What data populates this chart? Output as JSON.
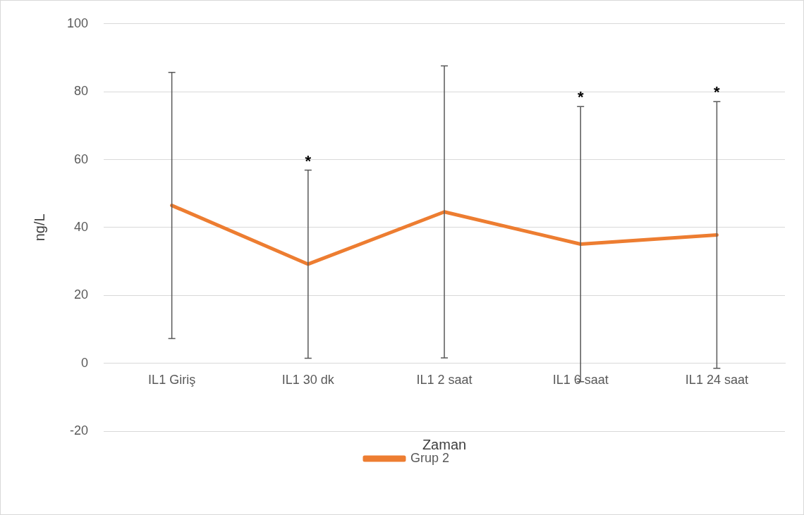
{
  "chart_data": {
    "type": "line",
    "xlabel": "Zaman",
    "ylabel": "ng/L",
    "categories": [
      "IL1 Giriş",
      "IL1 30 dk",
      "IL1 2 saat",
      "IL1 6 saat",
      "IL1 24 saat"
    ],
    "series": [
      {
        "name": "Grup 2",
        "color": "#ed7d31",
        "values": [
          46.5,
          29.2,
          44.6,
          35.1,
          37.8
        ],
        "errors": [
          39.2,
          27.7,
          43,
          40.5,
          39.3
        ]
      }
    ],
    "ylim": [
      -20,
      100
    ],
    "yticks": [
      -20,
      0,
      20,
      40,
      60,
      80,
      100
    ],
    "grid": "y",
    "legend": "bottom",
    "marker": "none",
    "annotations": [
      {
        "text": "*",
        "x": "IL1 30 dk",
        "y": 56.9
      },
      {
        "text": "*",
        "x": "IL1 6 saat",
        "y": 75.6
      },
      {
        "text": "*",
        "x": "IL1 24 saat",
        "y": 77.1
      }
    ]
  }
}
